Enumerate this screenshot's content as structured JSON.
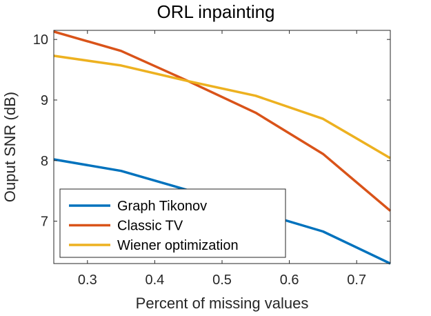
{
  "chart_data": {
    "type": "line",
    "title": "ORL inpainting",
    "xlabel": "Percent of missing values",
    "ylabel": "Ouput SNR (dB)",
    "xlim": [
      0.25,
      0.75
    ],
    "ylim": [
      6.3,
      10.15
    ],
    "xticks": [
      0.3,
      0.4,
      0.5,
      0.6,
      0.7
    ],
    "yticks": [
      7,
      8,
      9,
      10
    ],
    "grid": false,
    "legend_position": "bottom-left",
    "x": [
      0.25,
      0.35,
      0.45,
      0.55,
      0.65,
      0.75
    ],
    "series": [
      {
        "name": "Graph Tikonov",
        "color": "#0072BD",
        "values": [
          8.02,
          7.83,
          7.51,
          7.16,
          6.83,
          6.3
        ]
      },
      {
        "name": "Classic TV",
        "color": "#D95319",
        "values": [
          10.13,
          9.81,
          9.31,
          8.79,
          8.11,
          7.17
        ]
      },
      {
        "name": "Wiener optimization",
        "color": "#EDB120",
        "values": [
          9.73,
          9.57,
          9.31,
          9.07,
          8.69,
          8.04
        ]
      }
    ]
  }
}
